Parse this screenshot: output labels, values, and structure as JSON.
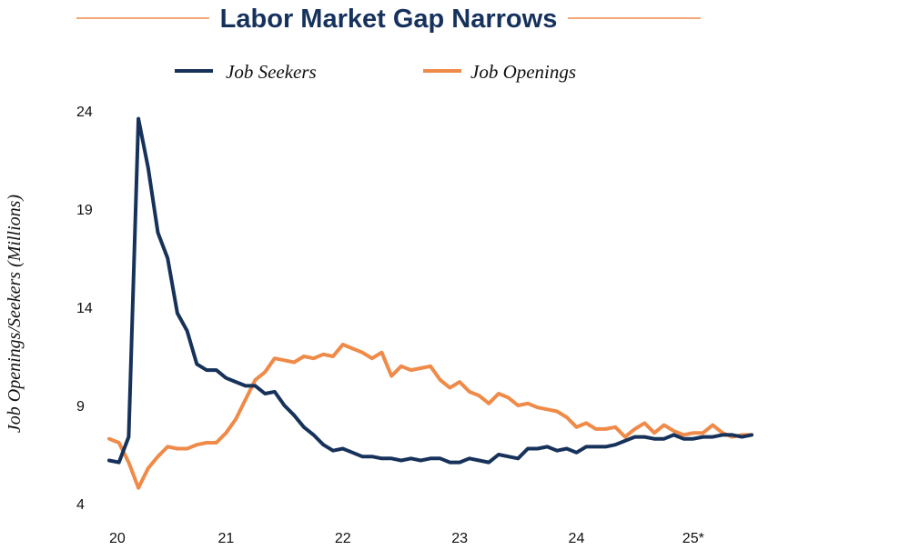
{
  "chart_data": {
    "type": "line",
    "title": "Labor Market Gap Narrows",
    "xlabel": "",
    "ylabel": "Job Openings/Seekers (Millions)",
    "x_tick_labels": [
      "20",
      "21",
      "22",
      "23",
      "24",
      "25*"
    ],
    "y_ticks": [
      4,
      9,
      14,
      19,
      24
    ],
    "y_tick_labels": [
      "4",
      "9",
      "14",
      "19",
      "24"
    ],
    "ylim": [
      4,
      24
    ],
    "xlim": [
      0,
      66
    ],
    "legend_position": "top",
    "grid": false,
    "series": [
      {
        "name": "Job Seekers",
        "color": "#17325a",
        "x": [
          0,
          1,
          2,
          3,
          4,
          5,
          6,
          7,
          8,
          9,
          10,
          11,
          12,
          13,
          14,
          15,
          16,
          17,
          18,
          19,
          20,
          21,
          22,
          23,
          24,
          25,
          26,
          27,
          28,
          29,
          30,
          31,
          32,
          33,
          34,
          35,
          36,
          37,
          38,
          39,
          40,
          41,
          42,
          43,
          44,
          45,
          46,
          47,
          48,
          49,
          50,
          51,
          52,
          53,
          54,
          55,
          56,
          57,
          58,
          59,
          60,
          61,
          62,
          63,
          64,
          65,
          66
        ],
        "values": [
          6.2,
          6.1,
          7.4,
          23.6,
          21.1,
          17.8,
          16.5,
          13.7,
          12.8,
          11.1,
          10.8,
          10.8,
          10.4,
          10.2,
          10.0,
          10.0,
          9.6,
          9.7,
          9.0,
          8.5,
          7.9,
          7.5,
          7.0,
          6.7,
          6.8,
          6.6,
          6.4,
          6.4,
          6.3,
          6.3,
          6.2,
          6.3,
          6.2,
          6.3,
          6.3,
          6.1,
          6.1,
          6.3,
          6.2,
          6.1,
          6.5,
          6.4,
          6.3,
          6.8,
          6.8,
          6.9,
          6.7,
          6.8,
          6.6,
          6.9,
          6.9,
          6.9,
          7.0,
          7.2,
          7.4,
          7.4,
          7.3,
          7.3,
          7.5,
          7.3,
          7.3,
          7.4,
          7.4,
          7.5,
          7.5,
          7.4,
          7.5
        ]
      },
      {
        "name": "Job Openings",
        "color": "#ef8a48",
        "x": [
          0,
          1,
          2,
          3,
          4,
          5,
          6,
          7,
          8,
          9,
          10,
          11,
          12,
          13,
          14,
          15,
          16,
          17,
          18,
          19,
          20,
          21,
          22,
          23,
          24,
          25,
          26,
          27,
          28,
          29,
          30,
          31,
          32,
          33,
          34,
          35,
          36,
          37,
          38,
          39,
          40,
          41,
          42,
          43,
          44,
          45,
          46,
          47,
          48,
          49,
          50,
          51,
          52,
          53,
          54,
          55,
          56,
          57,
          58,
          59,
          60,
          61,
          62,
          63,
          64,
          65,
          66
        ],
        "values": [
          7.3,
          7.1,
          6.1,
          4.8,
          5.8,
          6.4,
          6.9,
          6.8,
          6.8,
          7.0,
          7.1,
          7.1,
          7.6,
          8.3,
          9.3,
          10.3,
          10.7,
          11.4,
          11.3,
          11.2,
          11.5,
          11.4,
          11.6,
          11.5,
          12.1,
          11.9,
          11.7,
          11.4,
          11.7,
          10.5,
          11.0,
          10.8,
          10.9,
          11.0,
          10.3,
          9.9,
          10.2,
          9.7,
          9.5,
          9.1,
          9.6,
          9.4,
          9.0,
          9.1,
          8.9,
          8.8,
          8.7,
          8.4,
          7.9,
          8.1,
          7.8,
          7.8,
          7.9,
          7.4,
          7.8,
          8.1,
          7.6,
          8.0,
          7.7,
          7.5,
          7.6,
          7.6,
          8.0,
          7.6,
          7.4,
          7.5,
          7.5
        ]
      }
    ]
  }
}
